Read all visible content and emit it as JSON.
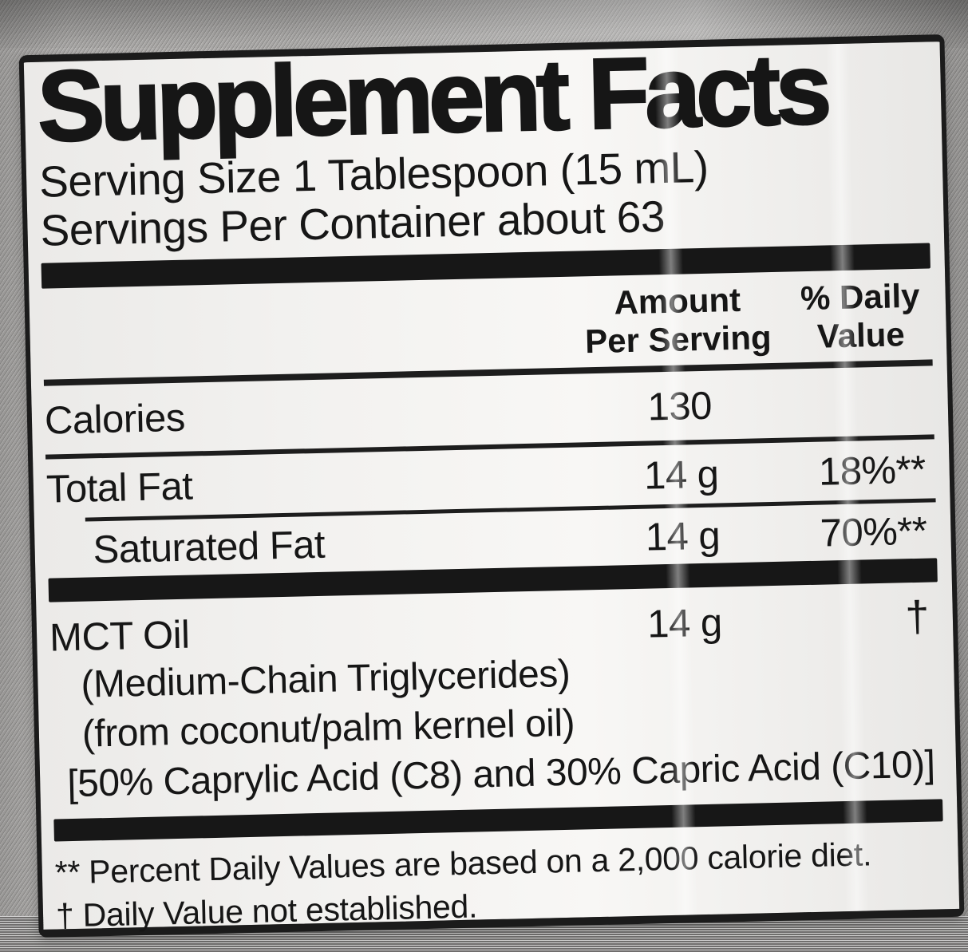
{
  "label": {
    "title": "Supplement Facts",
    "serving": {
      "size": "Serving Size 1 Tablespoon (15 mL)",
      "per_container": "Servings Per Container about 63"
    },
    "columns": {
      "amount_line1": "Amount",
      "amount_line2": "Per Serving",
      "dv_line1": "% Daily",
      "dv_line2": "Value"
    },
    "rows": [
      {
        "name": "Calories",
        "amount": "130",
        "dv": ""
      },
      {
        "name": "Total Fat",
        "amount": "14 g",
        "dv": "18%**"
      },
      {
        "name": "Saturated Fat",
        "amount": "14 g",
        "dv": "70%**"
      },
      {
        "name": "MCT Oil",
        "amount": "14 g",
        "dv": "†"
      }
    ],
    "mct_details": [
      "(Medium-Chain Triglycerides)",
      "(from coconut/palm kernel oil)",
      "[50% Caprylic Acid (C8) and 30% Capric Acid (C10)]"
    ],
    "footnotes": {
      "daily_values": "** Percent Daily Values are based on a 2,000 calorie diet.",
      "dagger": "† Daily Value not established."
    },
    "colors": {
      "label_background": "#f2f1ef",
      "text": "#161616",
      "bar": "#171717",
      "photo_background": "#b2b0ae"
    }
  }
}
